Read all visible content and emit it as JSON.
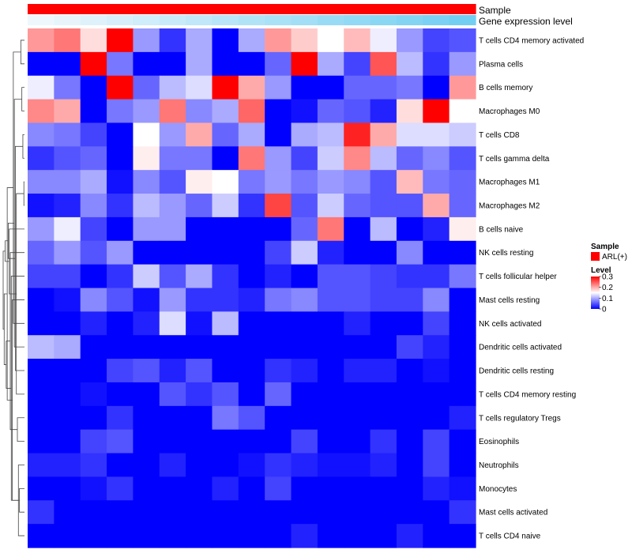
{
  "chart_data": {
    "type": "heatmap",
    "annotation_tracks": [
      "Sample",
      "Gene expression level"
    ],
    "rows": [
      "T cells CD4 memory activated",
      "Plasma cells",
      "B cells memory",
      "Macrophages M0",
      "T cells CD8",
      "T cells gamma delta",
      "Macrophages M1",
      "Macrophages M2",
      "B cells naive",
      "NK cells resting",
      "T cells follicular helper",
      "Mast cells resting",
      "NK cells activated",
      "Dendritic cells activated",
      "Dendritic cells resting",
      "T cells CD4 memory resting",
      "T cells regulatory  Tregs",
      "Eosinophils",
      "Neutrophils",
      "Monocytes",
      "Mast cells activated",
      "T cells CD4 naive"
    ],
    "n_columns": 17,
    "values": [
      [
        0.21,
        0.23,
        0.17,
        0.3,
        0.09,
        0.03,
        0.1,
        0.0,
        0.1,
        0.21,
        0.18,
        0.15,
        0.19,
        0.14,
        0.09,
        0.04,
        0.05
      ],
      [
        0.0,
        0.0,
        0.3,
        0.07,
        0.0,
        0.0,
        0.1,
        0.0,
        0.0,
        0.06,
        0.3,
        0.1,
        0.04,
        0.25,
        0.11,
        0.03,
        0.09
      ],
      [
        0.14,
        0.07,
        0.0,
        0.3,
        0.06,
        0.11,
        0.13,
        0.3,
        0.2,
        0.09,
        0.0,
        0.0,
        0.06,
        0.06,
        0.07,
        0.0,
        0.21
      ],
      [
        0.22,
        0.2,
        0.0,
        0.07,
        0.09,
        0.23,
        0.08,
        0.1,
        0.24,
        0.0,
        0.01,
        0.06,
        0.05,
        0.02,
        0.17,
        0.3,
        0.15
      ],
      [
        0.08,
        0.07,
        0.04,
        0.0,
        0.15,
        0.09,
        0.2,
        0.06,
        0.1,
        0.0,
        0.1,
        0.11,
        0.28,
        0.2,
        0.13,
        0.13,
        0.12
      ],
      [
        0.03,
        0.05,
        0.06,
        0.0,
        0.16,
        0.07,
        0.07,
        0.0,
        0.23,
        0.09,
        0.04,
        0.12,
        0.22,
        0.11,
        0.06,
        0.08,
        0.05
      ],
      [
        0.08,
        0.08,
        0.1,
        0.01,
        0.08,
        0.05,
        0.16,
        0.15,
        0.07,
        0.09,
        0.07,
        0.09,
        0.08,
        0.05,
        0.19,
        0.07,
        0.06
      ],
      [
        0.01,
        0.02,
        0.08,
        0.03,
        0.11,
        0.09,
        0.06,
        0.12,
        0.03,
        0.26,
        0.05,
        0.12,
        0.06,
        0.05,
        0.05,
        0.2,
        0.06
      ],
      [
        0.09,
        0.14,
        0.04,
        0.0,
        0.09,
        0.09,
        0.0,
        0.0,
        0.0,
        0.0,
        0.06,
        0.23,
        0.0,
        0.11,
        0.0,
        0.02,
        0.16
      ],
      [
        0.06,
        0.09,
        0.05,
        0.09,
        0.0,
        0.0,
        0.0,
        0.0,
        0.0,
        0.04,
        0.12,
        0.02,
        0.0,
        0.0,
        0.08,
        0.0,
        0.0
      ],
      [
        0.04,
        0.04,
        0.0,
        0.03,
        0.12,
        0.05,
        0.1,
        0.03,
        0.0,
        0.02,
        0.0,
        0.05,
        0.05,
        0.04,
        0.03,
        0.03,
        0.07
      ],
      [
        0.0,
        0.01,
        0.08,
        0.05,
        0.01,
        0.09,
        0.03,
        0.03,
        0.02,
        0.07,
        0.08,
        0.05,
        0.05,
        0.04,
        0.04,
        0.08,
        0.0
      ],
      [
        0.0,
        0.0,
        0.02,
        0.0,
        0.02,
        0.13,
        0.01,
        0.11,
        0.0,
        0.0,
        0.0,
        0.0,
        0.02,
        0.0,
        0.0,
        0.04,
        0.0
      ],
      [
        0.11,
        0.1,
        0.0,
        0.0,
        0.0,
        0.0,
        0.0,
        0.0,
        0.0,
        0.0,
        0.0,
        0.0,
        0.0,
        0.0,
        0.04,
        0.02,
        0.0
      ],
      [
        0.0,
        0.0,
        0.0,
        0.04,
        0.05,
        0.02,
        0.05,
        0.0,
        0.0,
        0.03,
        0.02,
        0.0,
        0.02,
        0.02,
        0.0,
        0.01,
        0.0
      ],
      [
        0.0,
        0.0,
        0.01,
        0.0,
        0.0,
        0.05,
        0.03,
        0.05,
        0.0,
        0.06,
        0.0,
        0.0,
        0.0,
        0.0,
        0.0,
        0.0,
        0.0
      ],
      [
        0.0,
        0.0,
        0.0,
        0.03,
        0.0,
        0.0,
        0.0,
        0.07,
        0.05,
        0.0,
        0.0,
        0.0,
        0.0,
        0.0,
        0.0,
        0.0,
        0.02
      ],
      [
        0.0,
        0.0,
        0.04,
        0.05,
        0.0,
        0.0,
        0.0,
        0.0,
        0.0,
        0.0,
        0.04,
        0.0,
        0.0,
        0.03,
        0.0,
        0.04,
        0.0
      ],
      [
        0.02,
        0.02,
        0.03,
        0.0,
        0.0,
        0.02,
        0.0,
        0.0,
        0.01,
        0.03,
        0.02,
        0.01,
        0.01,
        0.02,
        0.0,
        0.04,
        0.0
      ],
      [
        0.0,
        0.0,
        0.01,
        0.03,
        0.0,
        0.0,
        0.0,
        0.02,
        0.0,
        0.04,
        0.0,
        0.0,
        0.0,
        0.0,
        0.0,
        0.02,
        0.01
      ],
      [
        0.03,
        0.0,
        0.0,
        0.0,
        0.0,
        0.0,
        0.0,
        0.0,
        0.0,
        0.0,
        0.0,
        0.0,
        0.0,
        0.0,
        0.0,
        0.0,
        0.03
      ],
      [
        0.0,
        0.0,
        0.0,
        0.0,
        0.0,
        0.0,
        0.0,
        0.0,
        0.0,
        0.0,
        0.02,
        0.0,
        0.0,
        0.0,
        0.02,
        0.0,
        0.0
      ]
    ],
    "gene_expression_level": [
      0.0,
      0.06,
      0.12,
      0.19,
      0.25,
      0.31,
      0.37,
      0.44,
      0.5,
      0.56,
      0.62,
      0.69,
      0.75,
      0.81,
      0.87,
      0.94,
      1.0
    ],
    "sample_group": "ARL(+)",
    "legend": {
      "sample_title": "Sample",
      "sample_entry": "ARL(+)",
      "level_title": "Level",
      "level_ticks": [
        "0.3",
        "0.2",
        "0.1",
        "0"
      ],
      "level_tick_values": [
        0.3,
        0.2,
        0.1,
        0
      ],
      "range": [
        0,
        0.3
      ],
      "placement": "right"
    }
  },
  "colors": {
    "low": "#0000ff",
    "mid": "#ffffff",
    "high": "#ff0000",
    "sample_track": "#ff0000",
    "gene_expr_low": "#eef7fc",
    "gene_expr_high": "#73cff2",
    "dendrogram": "#444444"
  },
  "dendrogram_merges": [
    [
      6,
      7
    ],
    [
      4,
      5
    ],
    [
      2,
      3
    ],
    [
      0,
      1
    ],
    [
      19,
      20
    ],
    [
      18,
      21
    ],
    [
      16,
      17
    ],
    [
      15,
      22
    ],
    [
      14,
      23
    ],
    [
      13,
      24
    ],
    [
      12,
      25
    ],
    [
      11,
      26
    ],
    [
      10,
      27
    ],
    [
      9,
      28
    ],
    [
      8,
      29
    ],
    [
      30,
      31
    ],
    [
      32,
      33
    ],
    [
      34,
      35
    ],
    [
      36,
      37
    ],
    [
      38,
      39
    ],
    [
      40,
      41
    ]
  ]
}
